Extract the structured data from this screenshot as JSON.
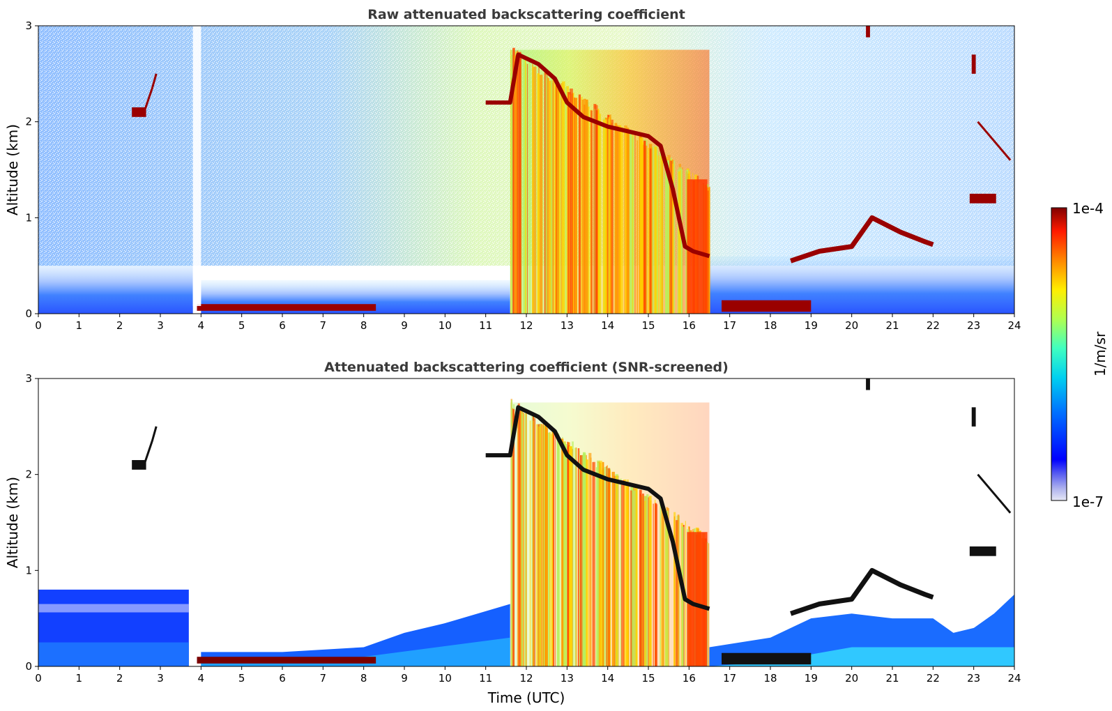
{
  "chart_data": [
    {
      "type": "heatmap",
      "title": "Raw attenuated backscattering coefficient",
      "xlabel": "",
      "ylabel": "Altitude (km)",
      "xlim": [
        0,
        24
      ],
      "ylim": [
        0,
        3
      ],
      "x_ticks": [
        "0",
        "1",
        "2",
        "3",
        "4",
        "5",
        "6",
        "7",
        "8",
        "9",
        "10",
        "11",
        "12",
        "13",
        "14",
        "15",
        "16",
        "17",
        "18",
        "19",
        "20",
        "21",
        "22",
        "23",
        "24"
      ],
      "y_ticks": [
        "0",
        "1",
        "2",
        "3"
      ],
      "grid": false,
      "features": [
        {
          "feature": "boundary layer aerosol",
          "x_range": [
            0,
            3.8
          ],
          "y_range": [
            0,
            0.5
          ],
          "level": "low"
        },
        {
          "feature": "gap / no data",
          "x_range": [
            3.8,
            4.0
          ],
          "y_range": [
            0,
            3
          ],
          "level": "none"
        },
        {
          "feature": "fog layer",
          "x_range": [
            3.9,
            8.3
          ],
          "y_range": [
            0,
            0.1
          ],
          "level": "high"
        },
        {
          "feature": "small cloud",
          "x_range": [
            2.3,
            2.6
          ],
          "y_range": [
            2.05,
            2.15
          ],
          "level": "high"
        },
        {
          "feature": "precipitation",
          "x_range": [
            11.6,
            16.5
          ],
          "y_range": [
            0,
            2.8
          ],
          "level": "medium"
        },
        {
          "feature": "descending cloud base",
          "x_range": [
            11.0,
            16.5
          ],
          "y_range": [
            1.4,
            2.8
          ],
          "level": "high"
        },
        {
          "feature": "low cloud layer",
          "x_range": [
            16.8,
            19.0
          ],
          "y_range": [
            0,
            0.15
          ],
          "level": "high"
        },
        {
          "feature": "stratocumulus layer",
          "x_range": [
            18.5,
            22.0
          ],
          "y_range": [
            0.55,
            1.0
          ],
          "level": "high"
        },
        {
          "feature": "cloud layer",
          "x_range": [
            22.9,
            23.5
          ],
          "y_range": [
            1.15,
            1.25
          ],
          "level": "high"
        }
      ]
    },
    {
      "type": "heatmap",
      "title": "Attenuated backscattering coefficient (SNR-screened)",
      "xlabel": "Time (UTC)",
      "ylabel": "Altitude (km)",
      "xlim": [
        0,
        24
      ],
      "ylim": [
        0,
        3
      ],
      "x_ticks": [
        "0",
        "1",
        "2",
        "3",
        "4",
        "5",
        "6",
        "7",
        "8",
        "9",
        "10",
        "11",
        "12",
        "13",
        "14",
        "15",
        "16",
        "17",
        "18",
        "19",
        "20",
        "21",
        "22",
        "23",
        "24"
      ],
      "y_ticks": [
        "0",
        "1",
        "2",
        "3"
      ],
      "grid": false,
      "features": [
        {
          "feature": "boundary layer aerosol",
          "x_range": [
            0,
            3.7
          ],
          "y_range": [
            0,
            0.8
          ],
          "level": "low"
        },
        {
          "feature": "fog layer",
          "x_range": [
            3.9,
            8.3
          ],
          "y_range": [
            0,
            0.1
          ],
          "level": "high"
        },
        {
          "feature": "aerosol layer",
          "x_range": [
            4.0,
            11.6
          ],
          "y_range": [
            0,
            0.5
          ],
          "level": "low"
        },
        {
          "feature": "precipitation",
          "x_range": [
            11.6,
            16.5
          ],
          "y_range": [
            0,
            2.8
          ],
          "level": "medium"
        },
        {
          "feature": "low cloud layer",
          "x_range": [
            16.8,
            19.0
          ],
          "y_range": [
            0,
            0.15
          ],
          "level": "high"
        },
        {
          "feature": "stratocumulus layer",
          "x_range": [
            18.5,
            22.0
          ],
          "y_range": [
            0.55,
            1.0
          ],
          "level": "high"
        }
      ]
    }
  ],
  "colorbar": {
    "label": "1/m/sr",
    "max_label": "1e-4",
    "min_label": "1e-7",
    "scale": "log",
    "range": [
      1e-07,
      0.0001
    ],
    "colormap": "jet"
  }
}
